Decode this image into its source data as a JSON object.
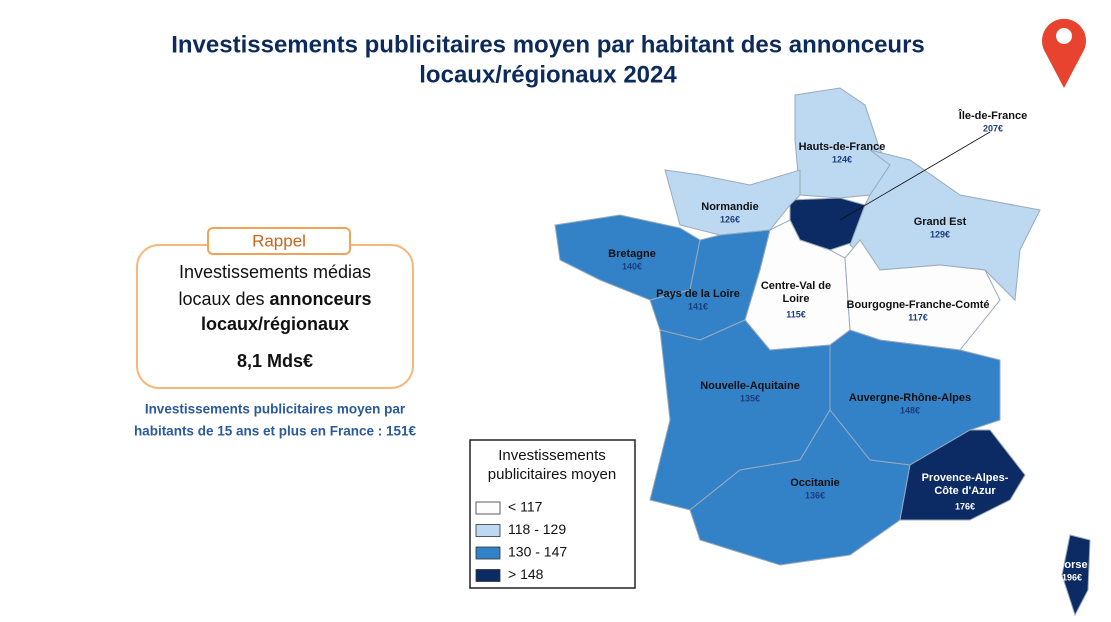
{
  "header": {
    "title_line1": "Investissements publicitaires moyen par habitant des annonceurs",
    "title_line2": "locaux/régionaux 2024"
  },
  "reminder": {
    "tag": "Rappel",
    "line1": "Investissements médias",
    "line2_plain": "locaux des ",
    "line2_bold": "annonceurs",
    "line3": "locaux/régionaux",
    "amount": "8,1 Mds€"
  },
  "note": {
    "line1": "Investissements publicitaires moyen par",
    "line2": "habitants de 15 ans et plus en France : 151€"
  },
  "legend": {
    "title_line1": "Investissements",
    "title_line2": "publicitaires moyen",
    "classes": [
      {
        "label": "< 117",
        "color": "#fdfdfd"
      },
      {
        "label": "118 - 129",
        "color": "#bcd9f1"
      },
      {
        "label": "130 - 147",
        "color": "#3382c8"
      },
      {
        "label": "> 148",
        "color": "#0c2a64"
      }
    ]
  },
  "regions": [
    {
      "name": "Hauts-de-France",
      "value": "124€",
      "color": "#bcd9f1"
    },
    {
      "name": "Île-de-France",
      "value": "207€",
      "color": "#0c2a64"
    },
    {
      "name": "Normandie",
      "value": "126€",
      "color": "#bcd9f1"
    },
    {
      "name": "Grand Est",
      "value": "129€",
      "color": "#bcd9f1"
    },
    {
      "name": "Bretagne",
      "value": "140€",
      "color": "#3382c8"
    },
    {
      "name": "Pays de la Loire",
      "value": "141€",
      "color": "#3382c8"
    },
    {
      "name": "Centre-Val de Loire",
      "value": "115€",
      "color": "#fdfdfd"
    },
    {
      "name": "Bourgogne-Franche-Comté",
      "value": "117€",
      "color": "#fdfdfd"
    },
    {
      "name": "Nouvelle-Aquitaine",
      "value": "135€",
      "color": "#3382c8"
    },
    {
      "name": "Auvergne-Rhône-Alpes",
      "value": "148€",
      "color": "#3382c8"
    },
    {
      "name": "Occitanie",
      "value": "136€",
      "color": "#3382c8"
    },
    {
      "name": "Provence-Alpes-Côte d'Azur",
      "value": "176€",
      "color": "#0c2a64"
    },
    {
      "name": "Corse",
      "value": "196€",
      "color": "#0c2a64"
    }
  ]
}
